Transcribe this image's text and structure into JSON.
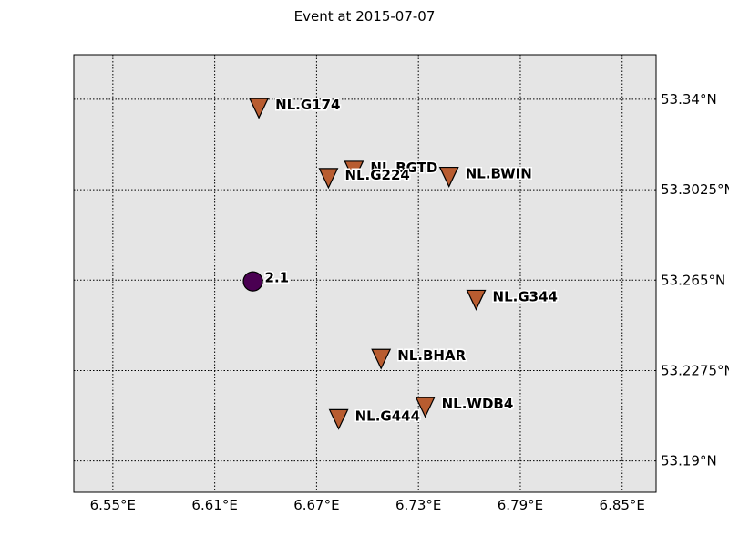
{
  "title": "Event at 2015-07-07",
  "map": {
    "background_color": "#e5e5e5",
    "lon_range": [
      6.527,
      6.87
    ],
    "lat_range": [
      53.177,
      53.3585
    ],
    "lon_ticks": [
      6.55,
      6.61,
      6.67,
      6.73,
      6.79,
      6.85
    ],
    "lon_tick_labels": [
      "6.55°E",
      "6.61°E",
      "6.67°E",
      "6.73°E",
      "6.79°E",
      "6.85°E"
    ],
    "lat_ticks": [
      53.19,
      53.2275,
      53.265,
      53.3025,
      53.34
    ],
    "lat_tick_labels": [
      "53.19°N",
      "53.2275°N",
      "53.265°N",
      "53.3025°N",
      "53.34°N"
    ],
    "grid": true
  },
  "station_color": "#b85c30",
  "event_color": "#4a0052",
  "stations": [
    {
      "name": "NL.G174",
      "lon": 6.636,
      "lat": 53.3365
    },
    {
      "name": "NL.BGTD",
      "lon": 6.692,
      "lat": 53.3105
    },
    {
      "name": "NL.G224",
      "lon": 6.677,
      "lat": 53.3075
    },
    {
      "name": "NL.BWIN",
      "lon": 6.748,
      "lat": 53.308
    },
    {
      "name": "NL.G344",
      "lon": 6.764,
      "lat": 53.257
    },
    {
      "name": "NL.BHAR",
      "lon": 6.708,
      "lat": 53.2325
    },
    {
      "name": "NL.WDB4",
      "lon": 6.734,
      "lat": 53.2125
    },
    {
      "name": "NL.G444",
      "lon": 6.683,
      "lat": 53.2075
    }
  ],
  "event": {
    "label": "2.1",
    "lon": 6.6325,
    "lat": 53.2645
  }
}
